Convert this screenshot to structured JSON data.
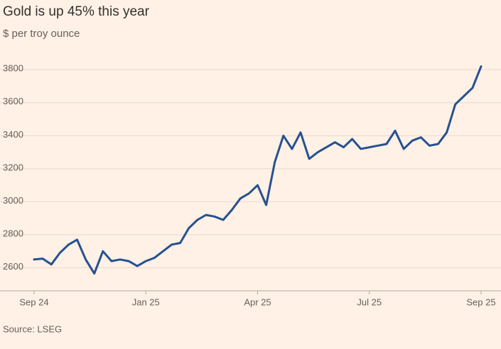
{
  "chart_data": {
    "type": "line",
    "title": "Gold is up 45% this year",
    "subtitle": "$ per troy ounce",
    "source": "Source: LSEG",
    "categories": [
      "Sep 24",
      null,
      null,
      null,
      null,
      null,
      null,
      null,
      null,
      null,
      null,
      null,
      null,
      "Jan 25",
      null,
      null,
      null,
      null,
      null,
      null,
      null,
      null,
      null,
      null,
      null,
      null,
      "Apr 25",
      null,
      null,
      null,
      null,
      null,
      null,
      null,
      null,
      null,
      null,
      null,
      null,
      "Jul 25",
      null,
      null,
      null,
      null,
      null,
      null,
      null,
      null,
      null,
      null,
      null,
      null,
      "Sep 25"
    ],
    "values": [
      2650,
      2655,
      2620,
      2690,
      2740,
      2770,
      2650,
      2565,
      2700,
      2640,
      2650,
      2640,
      2610,
      2640,
      2660,
      2700,
      2740,
      2750,
      2840,
      2890,
      2920,
      2910,
      2890,
      2950,
      3020,
      3050,
      3100,
      2980,
      3240,
      3400,
      3320,
      3420,
      3260,
      3300,
      3330,
      3360,
      3330,
      3380,
      3320,
      3330,
      3340,
      3350,
      3430,
      3320,
      3370,
      3390,
      3340,
      3350,
      3420,
      3590,
      3640,
      3690,
      3820
    ],
    "color": "#265191",
    "ylim": [
      2460,
      3900
    ],
    "yticks": [
      2600,
      2800,
      3000,
      3200,
      3400,
      3600,
      3800
    ],
    "grid": true
  }
}
